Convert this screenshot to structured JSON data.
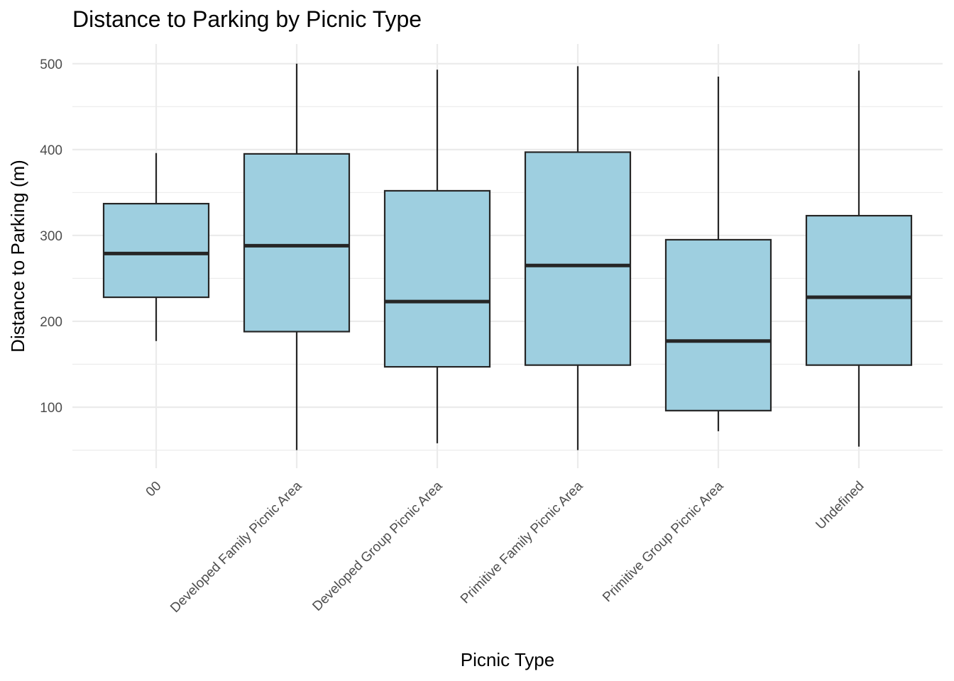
{
  "chart_data": {
    "type": "box",
    "title": "Distance to Parking by Picnic Type",
    "xlabel": "Picnic Type",
    "ylabel": "Distance to Parking (m)",
    "ylim": [
      40,
      510
    ],
    "y_ticks": [
      100,
      200,
      300,
      400,
      500
    ],
    "y_minor_ticks": [
      50,
      150,
      250,
      350,
      450
    ],
    "grid": true,
    "colors": {
      "box_fill": "#9ecfe0",
      "box_stroke": "#262626",
      "grid": "#ebebeb",
      "tick_text": "#4d4d4d"
    },
    "categories": [
      "00",
      "Developed Family Picnic Area",
      "Developed Group Picnic Area",
      "Primitive Family Picnic Area",
      "Primitive Group Picnic Area",
      "Undefined"
    ],
    "boxes": [
      {
        "category": "00",
        "min": 177,
        "q1": 228,
        "median": 279,
        "q3": 337,
        "max": 396
      },
      {
        "category": "Developed Family Picnic Area",
        "min": 50,
        "q1": 188,
        "median": 288,
        "q3": 395,
        "max": 500
      },
      {
        "category": "Developed Group Picnic Area",
        "min": 58,
        "q1": 147,
        "median": 223,
        "q3": 352,
        "max": 493
      },
      {
        "category": "Primitive Family Picnic Area",
        "min": 50,
        "q1": 149,
        "median": 265,
        "q3": 397,
        "max": 497
      },
      {
        "category": "Primitive Group Picnic Area",
        "min": 72,
        "q1": 96,
        "median": 177,
        "q3": 295,
        "max": 485
      },
      {
        "category": "Undefined",
        "min": 54,
        "q1": 149,
        "median": 228,
        "q3": 323,
        "max": 492
      }
    ]
  }
}
